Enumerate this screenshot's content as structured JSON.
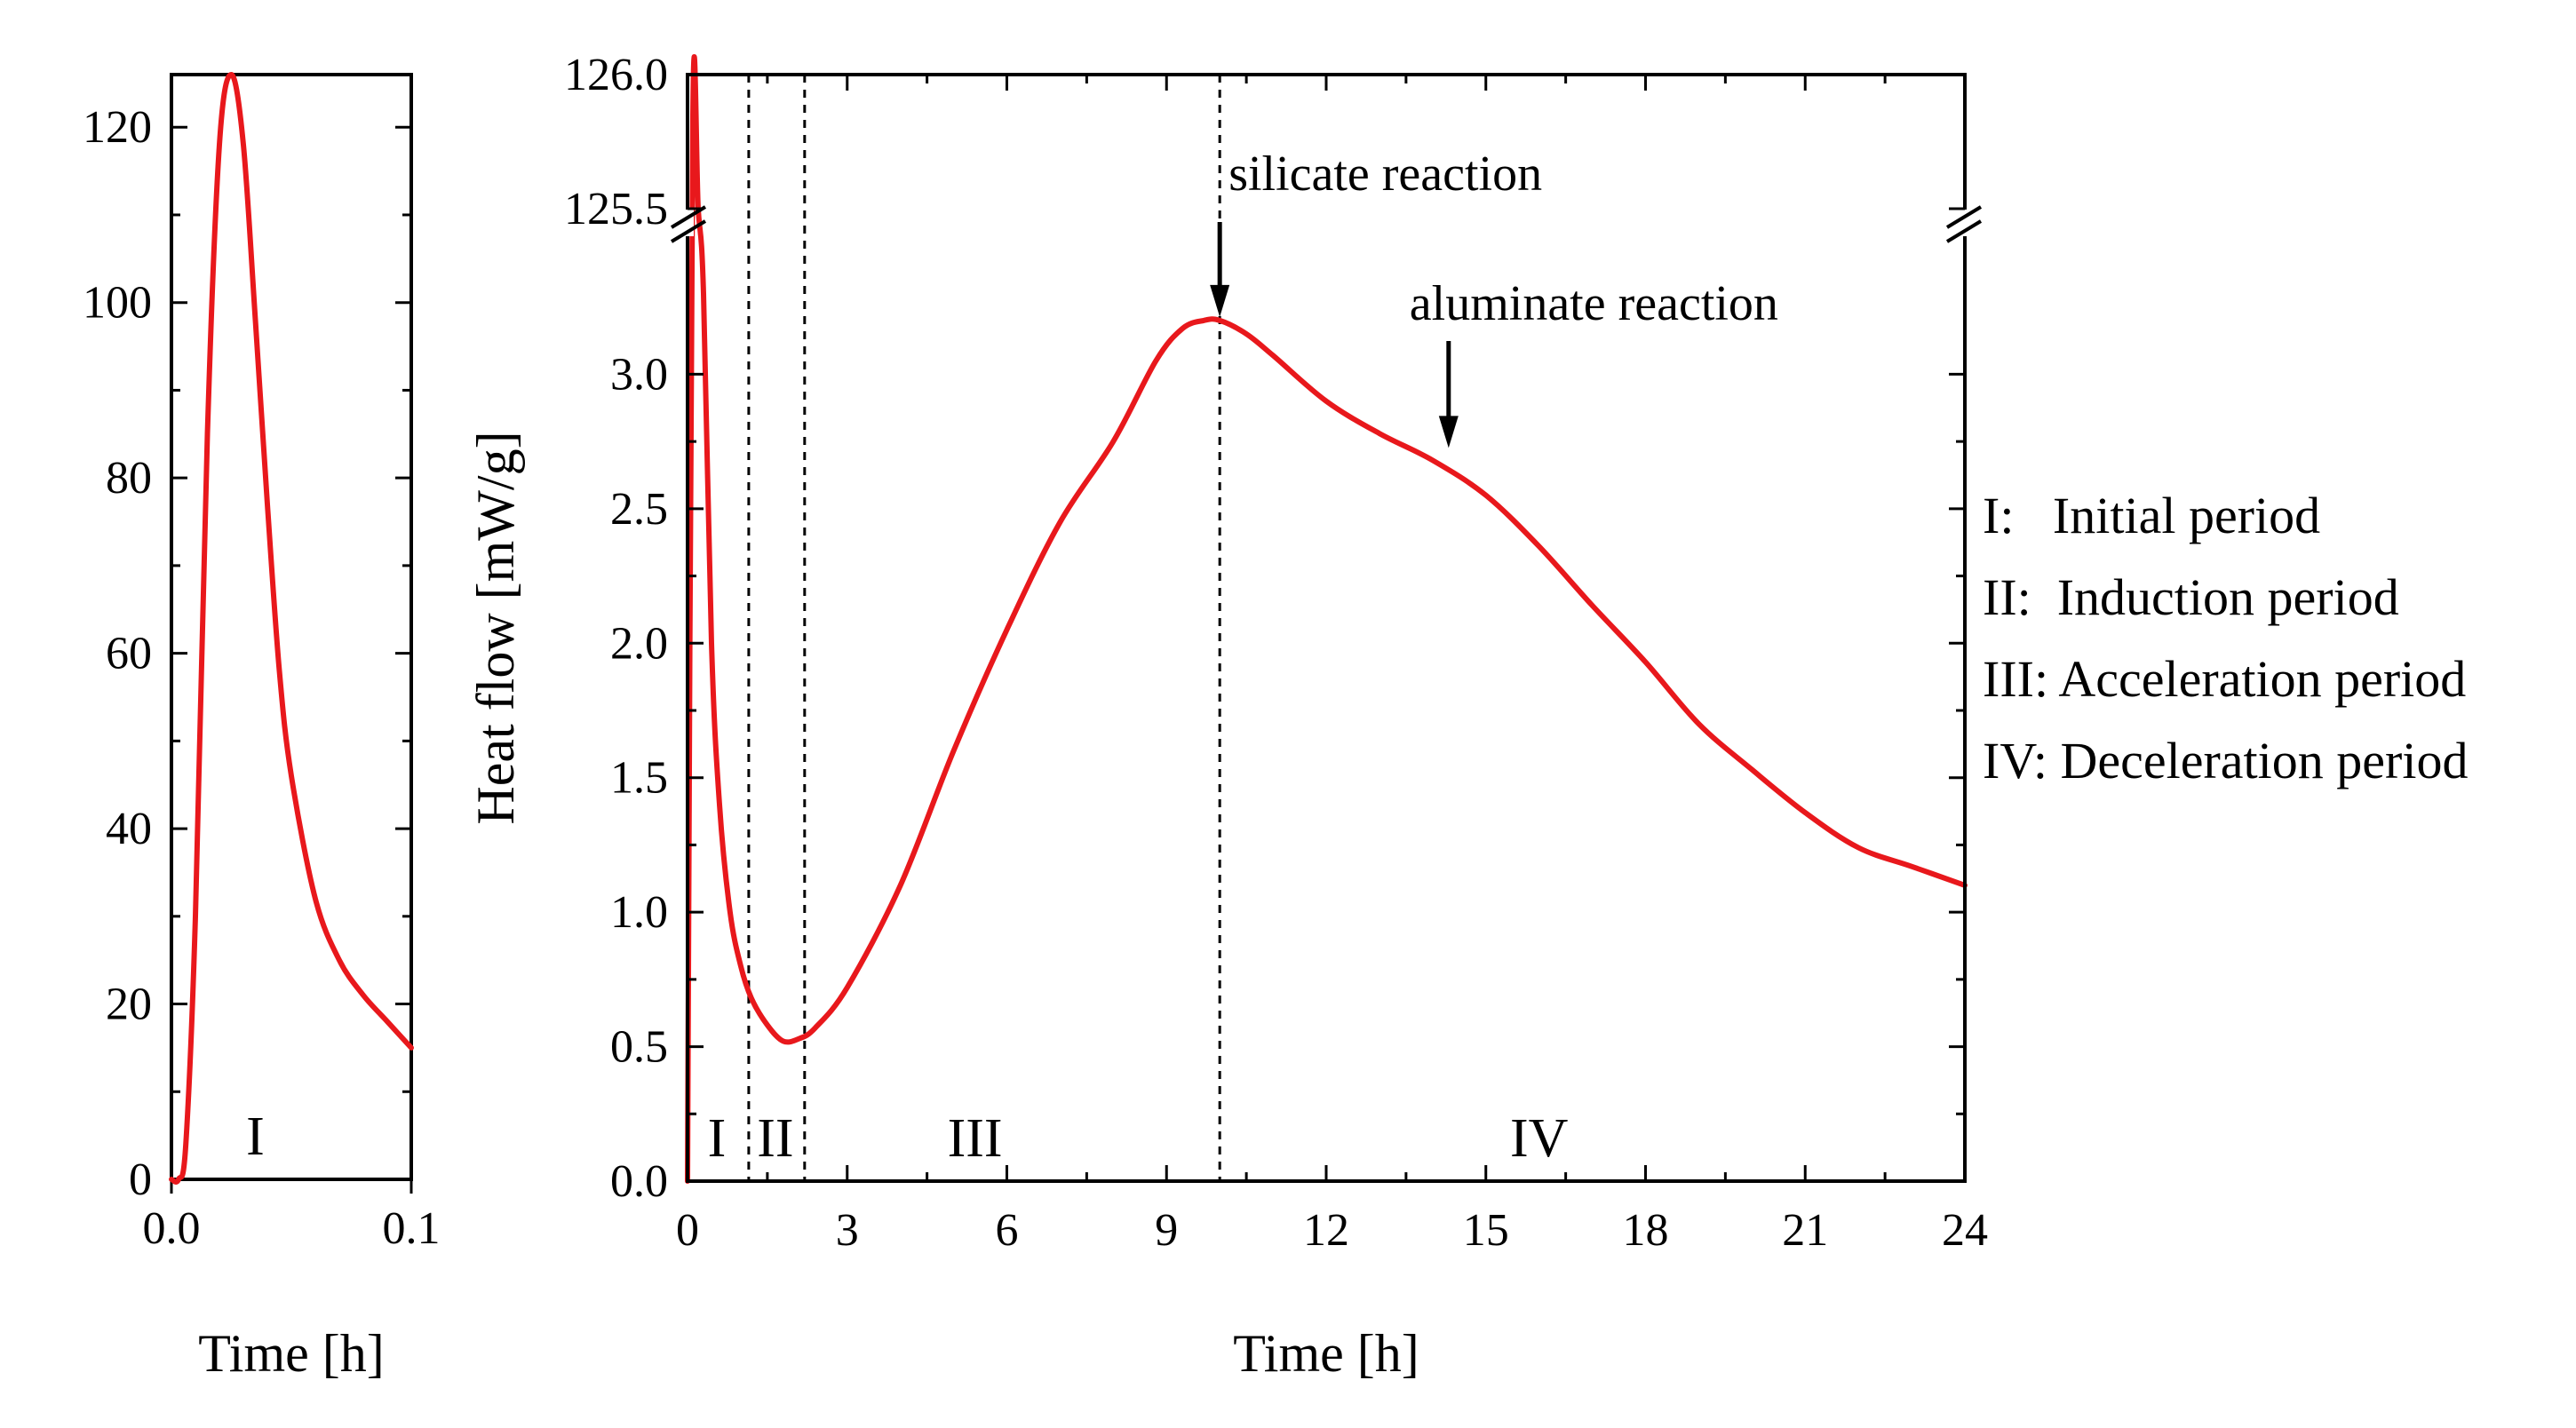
{
  "chart_data": [
    {
      "type": "line",
      "panel": "inset-initial-period",
      "xlabel": "Time [h]",
      "ylabel": "",
      "xlim": [
        0.0,
        0.1
      ],
      "ylim": [
        0,
        126
      ],
      "xticks": [
        0.0,
        0.1
      ],
      "xtick_labels": [
        "0.0",
        "0.1"
      ],
      "yticks": [
        0,
        20,
        40,
        60,
        80,
        100,
        120
      ],
      "ytick_labels": [
        "0",
        "20",
        "40",
        "60",
        "80",
        "100",
        "120"
      ],
      "series": [
        {
          "name": "Heat flow",
          "color": "#e8181c",
          "x": [
            0.0,
            0.003,
            0.006,
            0.01,
            0.015,
            0.02,
            0.025,
            0.03,
            0.035,
            0.04,
            0.045,
            0.05,
            0.06,
            0.07,
            0.08,
            0.09,
            0.1
          ],
          "y": [
            0,
            0,
            4,
            30,
            85,
            118,
            126,
            118,
            98,
            77,
            58,
            46,
            32,
            25,
            21,
            18,
            15
          ]
        }
      ],
      "region_labels": [
        {
          "text": "I",
          "x": 0.035
        }
      ]
    },
    {
      "type": "line",
      "panel": "main",
      "xlabel": "Time [h]",
      "ylabel": "Heat flow [mW/g]",
      "xlim": [
        0,
        24
      ],
      "ylim_lower": [
        0.0,
        3.5
      ],
      "ylim_upper": [
        125.5,
        126.0
      ],
      "xticks": [
        0,
        3,
        6,
        9,
        12,
        15,
        18,
        21,
        24
      ],
      "xtick_labels": [
        "0",
        "3",
        "6",
        "9",
        "12",
        "15",
        "18",
        "21",
        "24"
      ],
      "yticks": [
        0.0,
        0.5,
        1.0,
        1.5,
        2.0,
        2.5,
        3.0,
        125.5,
        126.0
      ],
      "ytick_labels": [
        "0.0",
        "0.5",
        "1.0",
        "1.5",
        "2.0",
        "2.5",
        "3.0",
        "125.5",
        "126.0"
      ],
      "series": [
        {
          "name": "Heat flow",
          "color": "#e8181c",
          "x": [
            0.0,
            0.1,
            0.2,
            0.3,
            0.45,
            0.6,
            0.8,
            1.0,
            1.2,
            1.5,
            1.8,
            2.1,
            2.4,
            3.0,
            4.0,
            5.0,
            6.0,
            7.0,
            8.0,
            8.8,
            9.3,
            9.7,
            10.0,
            10.5,
            11.0,
            12.0,
            13.0,
            14.0,
            15.0,
            16.0,
            17.0,
            18.0,
            19.0,
            20.0,
            21.0,
            22.0,
            23.0,
            24.0
          ],
          "y": [
            0.0,
            125.85,
            125.5,
            3.3,
            2.0,
            1.4,
            1.0,
            0.8,
            0.68,
            0.58,
            0.52,
            0.53,
            0.57,
            0.72,
            1.1,
            1.6,
            2.05,
            2.45,
            2.75,
            3.05,
            3.17,
            3.2,
            3.2,
            3.15,
            3.07,
            2.9,
            2.78,
            2.68,
            2.55,
            2.36,
            2.14,
            1.93,
            1.7,
            1.53,
            1.37,
            1.24,
            1.17,
            1.1
          ]
        }
      ],
      "dividers_x": [
        1.15,
        2.2,
        10.0
      ],
      "region_labels": [
        {
          "text": "I",
          "x": 0.55
        },
        {
          "text": "II",
          "x": 1.65
        },
        {
          "text": "III",
          "x": 5.4
        },
        {
          "text": "IV",
          "x": 16.0
        }
      ],
      "annotations": [
        {
          "text": "silicate reaction",
          "x": 10.0,
          "y": 3.2
        },
        {
          "text": "aluminate reaction",
          "x": 14.3,
          "y": 2.68
        }
      ],
      "legend": {
        "placement": "right",
        "entries": [
          "I:   Initial period",
          "II:  Induction period",
          "III: Acceleration period",
          "IV: Deceleration period"
        ]
      }
    }
  ]
}
